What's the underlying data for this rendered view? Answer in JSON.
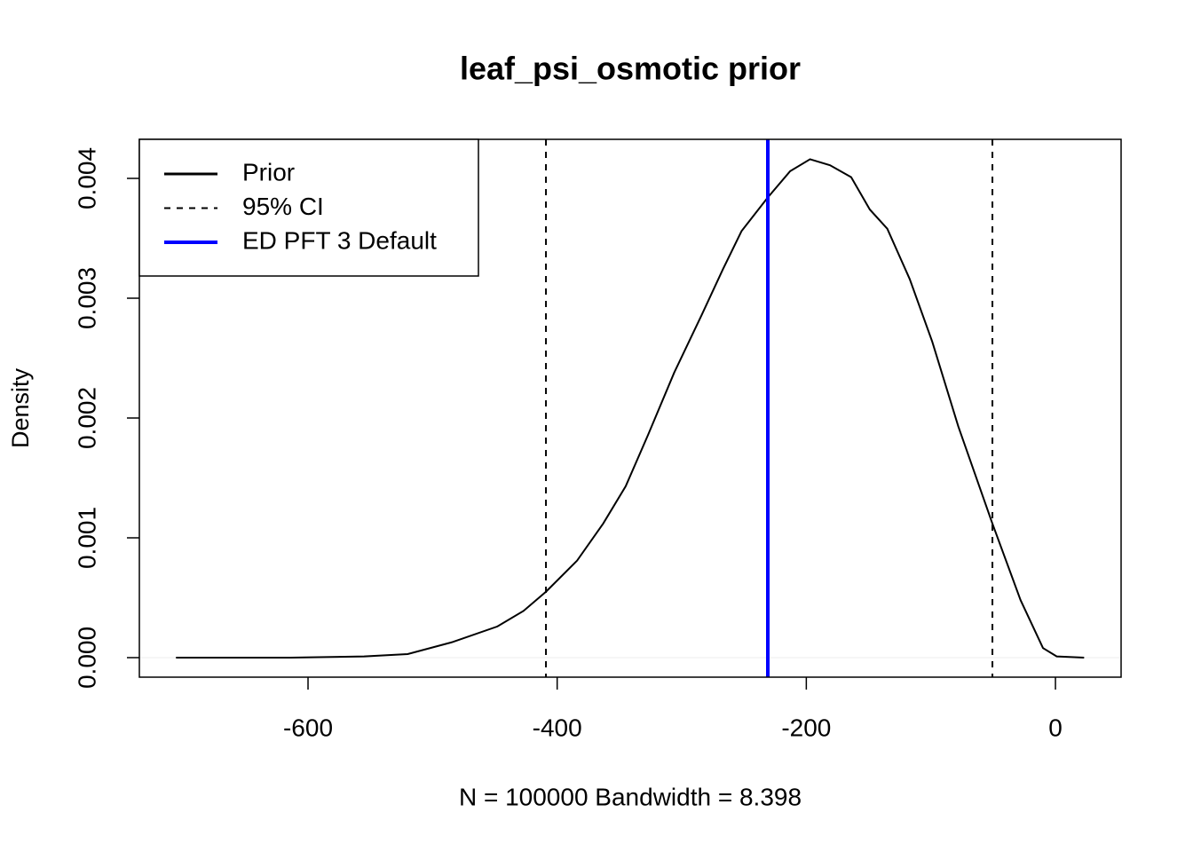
{
  "chart_data": {
    "type": "line",
    "title": "leaf_psi_osmotic prior",
    "x_label": "N = 100000   Bandwidth = 8.398",
    "y_label": "Density",
    "x": [
      -706,
      -614,
      -555,
      -520,
      -484,
      -448,
      -427,
      -409,
      -384,
      -363,
      -345,
      -327,
      -306,
      -284,
      -267,
      -252,
      -231,
      -213,
      -197,
      -181,
      -164,
      -149,
      -135,
      -117,
      -99,
      -78,
      -51,
      -28,
      -10,
      1,
      23
    ],
    "series": [
      {
        "name": "Prior",
        "color": "#000000",
        "values": [
          0,
          0,
          1e-05,
          3e-05,
          0.00013,
          0.00026,
          0.00039,
          0.00055,
          0.00081,
          0.00112,
          0.00143,
          0.00186,
          0.00238,
          0.00286,
          0.00324,
          0.00356,
          0.00384,
          0.00406,
          0.00416,
          0.00411,
          0.00401,
          0.00374,
          0.00358,
          0.00316,
          0.00264,
          0.00193,
          0.00113,
          0.00048,
          8e-05,
          1e-05,
          0
        ]
      }
    ],
    "vlines": [
      {
        "name": "95% CI",
        "color": "#000000",
        "dashed": true,
        "values": [
          -409,
          -50.6
        ]
      },
      {
        "name": "ED PFT 3 Default",
        "color": "#0000ff",
        "dashed": false,
        "values": [
          -230.9
        ]
      }
    ],
    "xlim": [
      -735.4,
      52.7
    ],
    "ylim": [
      -0.000163,
      0.004326
    ],
    "xticks": [
      -600,
      -400,
      -200,
      0
    ],
    "yticks": [
      {
        "value": 0,
        "label": "0.000"
      },
      {
        "value": 0.001,
        "label": "0.001"
      },
      {
        "value": 0.002,
        "label": "0.002"
      },
      {
        "value": 0.003,
        "label": "0.003"
      },
      {
        "value": 0.004,
        "label": "0.004"
      }
    ],
    "legend": "top-left"
  }
}
